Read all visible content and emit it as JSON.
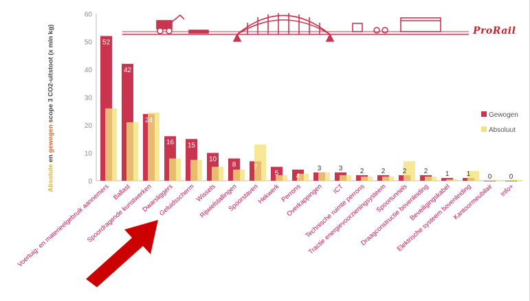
{
  "brand": "ProRail",
  "colors": {
    "gewogen": "#c9344f",
    "absoluut": "#f2e27a",
    "brand": "#c1272d",
    "arrow": "#cc0000"
  },
  "arrow_icon": "red-arrow-icon",
  "illustration_icon": "railway-bridge-illustration-icon",
  "chart_data": {
    "type": "bar",
    "ylabel_parts": [
      "Absolute",
      " en ",
      "gewogen",
      " scope 3 CO2-uitstoot (x mln kg)"
    ],
    "ylim": [
      0,
      60
    ],
    "yticks": [
      "0",
      "10",
      "20",
      "30",
      "40",
      "50",
      "60"
    ],
    "grid": false,
    "legend_position": "right",
    "categories": [
      "Voertuig- en materieelgebruik aannemers",
      "Ballast",
      "Spoordragende kunstwerken",
      "Dwarsliggers",
      "Geluidsscherm",
      "Wissels",
      "Rijwielstallingen",
      "Spoorstaven",
      "Hekwerk",
      "Perrons",
      "Overkappingen",
      "ICT",
      "Technische ruimte perrons",
      "Tractie energievoorzieningsysteem",
      "Spoortunnels",
      "Draagconstructie bovenleiding",
      "Beveiligingskabel",
      "Elektrische systeem bovenleiding",
      "Kantoormeubilair",
      "Info+"
    ],
    "series": [
      {
        "name": "Gewogen",
        "values": [
          52,
          42,
          24,
          16,
          15,
          10,
          8,
          7,
          5,
          4,
          3,
          3,
          2,
          2,
          2,
          2,
          1,
          1,
          0,
          0
        ],
        "labels": [
          "52",
          "42",
          "24",
          "16",
          "15",
          "10",
          "8",
          "7",
          "5",
          "4",
          "3",
          "3",
          "2",
          "2",
          "2",
          "2",
          "1",
          "1",
          "0",
          "0"
        ]
      },
      {
        "name": "Absoluut",
        "values": [
          26,
          21,
          24.5,
          8,
          7.5,
          5,
          4,
          13,
          2,
          2.5,
          3,
          2,
          1.5,
          1.5,
          7,
          1.5,
          0.5,
          3.5,
          0.2,
          0.3
        ]
      }
    ]
  }
}
